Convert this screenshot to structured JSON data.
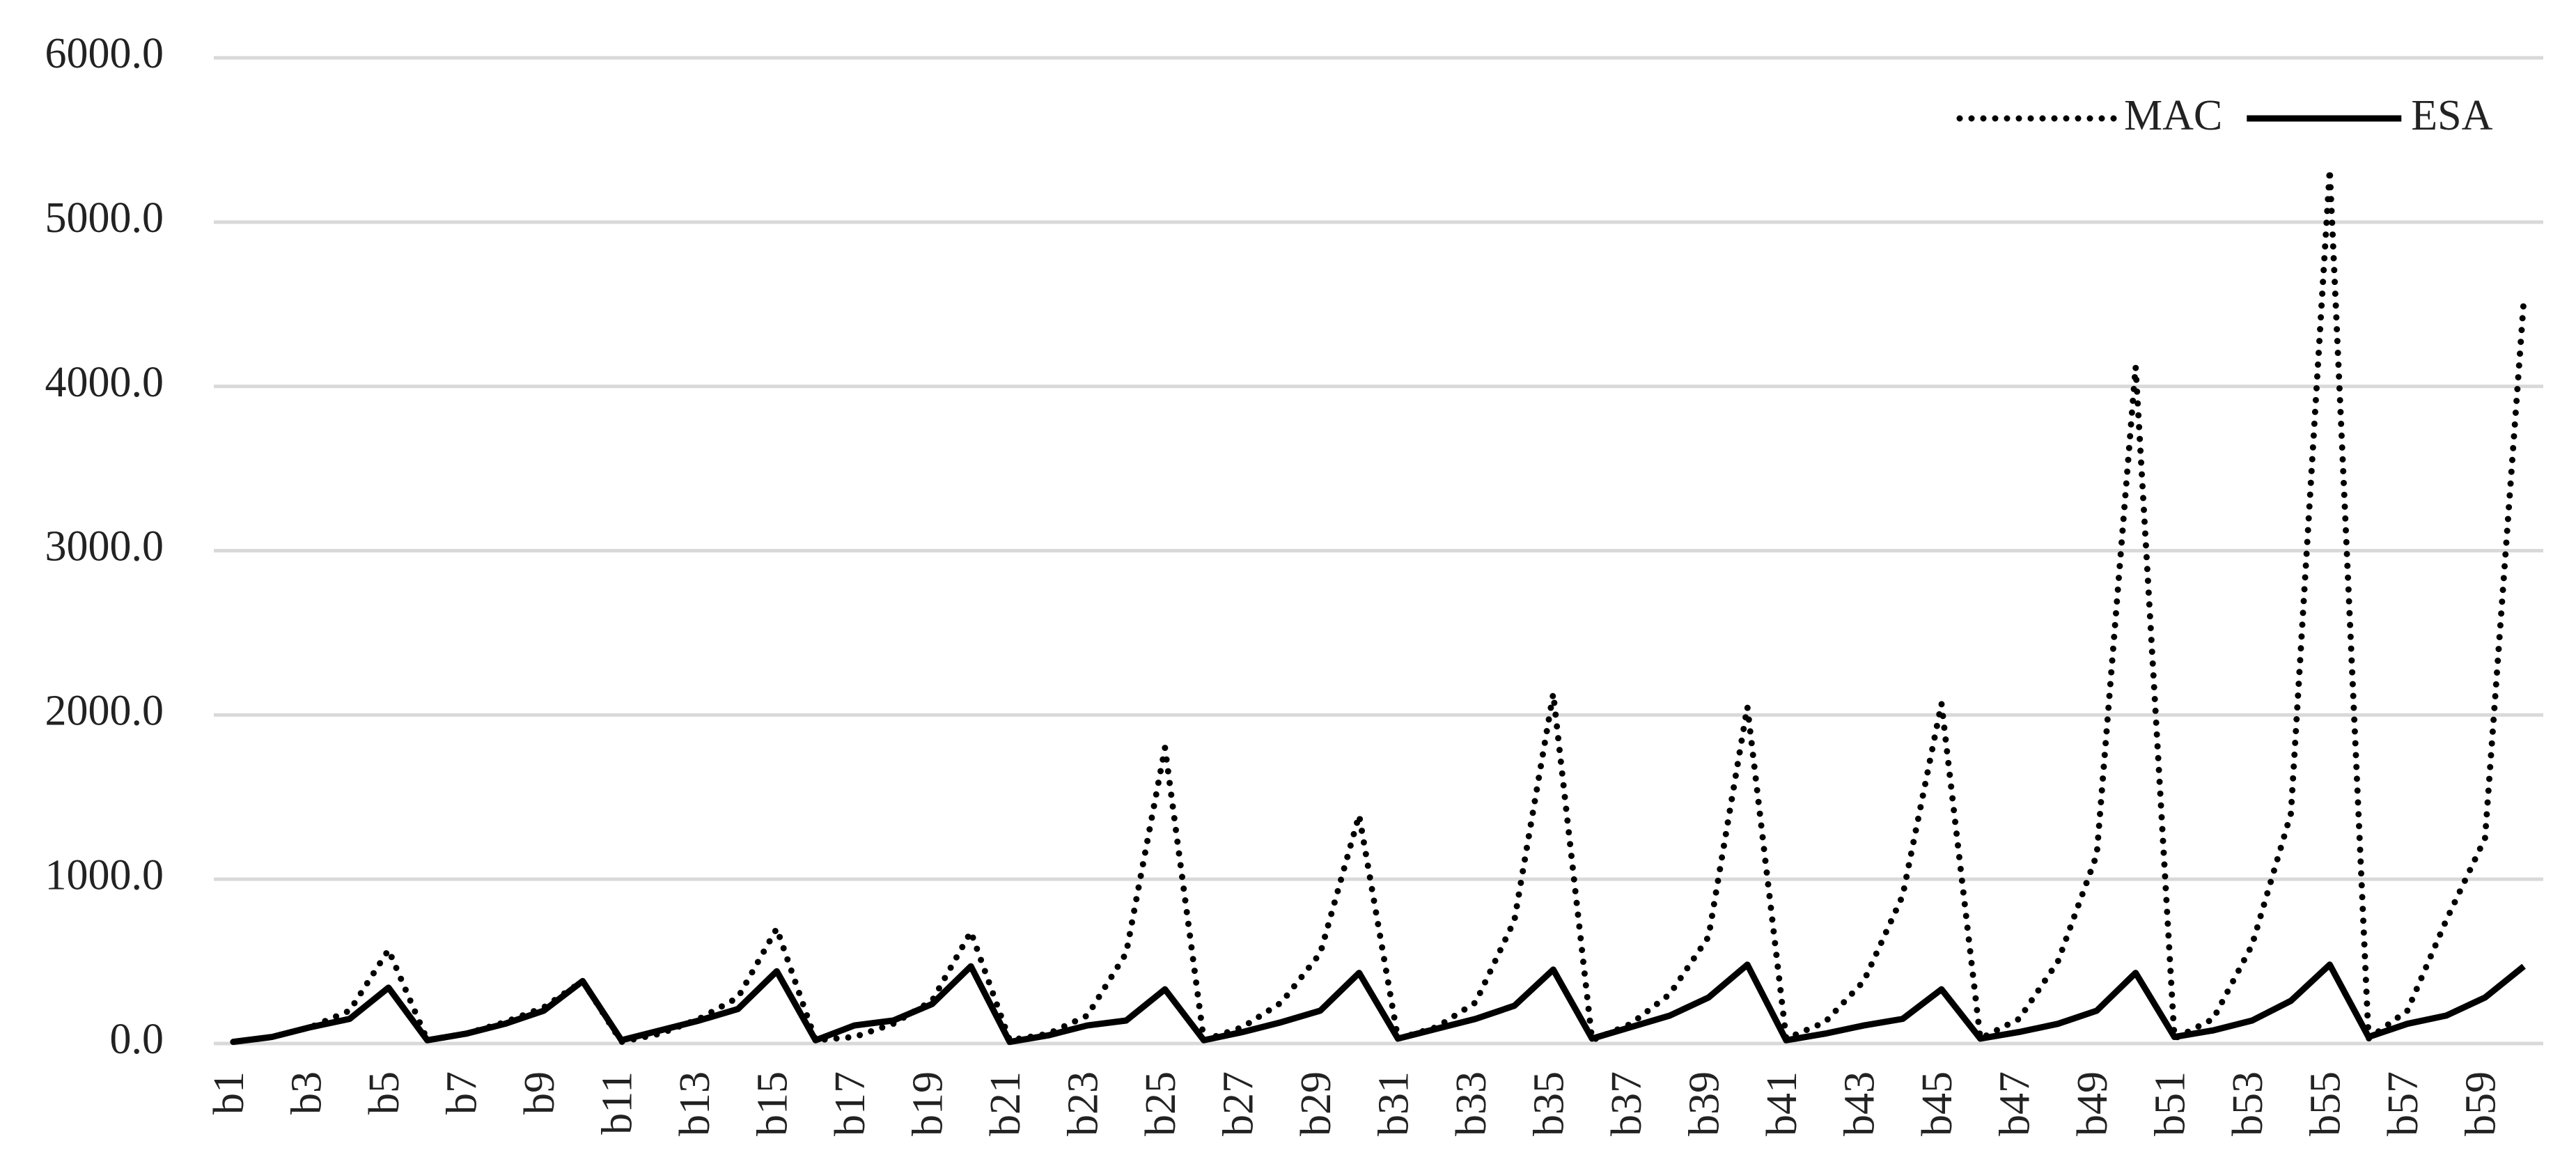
{
  "chart_data": {
    "type": "line",
    "categories": [
      "b1",
      null,
      "b3",
      null,
      "b5",
      null,
      "b7",
      null,
      "b9",
      null,
      "b11",
      null,
      "b13",
      null,
      "b15",
      null,
      "b17",
      null,
      "b19",
      null,
      "b21",
      null,
      "b23",
      null,
      "b25",
      null,
      "b27",
      null,
      "b29",
      null,
      "b31",
      null,
      "b33",
      null,
      "b35",
      null,
      "b37",
      null,
      "b39",
      null,
      "b41",
      null,
      "b43",
      null,
      "b45",
      null,
      "b47",
      null,
      "b49",
      null,
      "b51",
      null,
      "b53",
      null,
      "b55",
      null,
      "b57",
      null,
      "b59",
      null
    ],
    "series": [
      {
        "name": "MAC",
        "color": "#000000",
        "dash": "dotted",
        "values": [
          10,
          40,
          100,
          200,
          570,
          20,
          60,
          130,
          220,
          380,
          10,
          60,
          150,
          280,
          700,
          20,
          40,
          120,
          260,
          680,
          20,
          60,
          170,
          550,
          1800,
          20,
          100,
          250,
          550,
          1390,
          30,
          100,
          250,
          750,
          2130,
          20,
          120,
          300,
          650,
          2050,
          30,
          130,
          380,
          900,
          2070,
          30,
          150,
          500,
          1150,
          4120,
          30,
          150,
          600,
          1400,
          5320,
          30,
          200,
          750,
          1250,
          4530
        ]
      },
      {
        "name": "ESA",
        "color": "#000000",
        "dash": "solid",
        "values": [
          10,
          40,
          100,
          150,
          340,
          20,
          60,
          120,
          200,
          380,
          20,
          80,
          140,
          210,
          440,
          20,
          110,
          140,
          240,
          470,
          10,
          50,
          110,
          140,
          330,
          20,
          70,
          130,
          200,
          430,
          30,
          90,
          150,
          230,
          450,
          30,
          100,
          170,
          280,
          480,
          20,
          60,
          110,
          150,
          330,
          30,
          70,
          120,
          200,
          430,
          40,
          80,
          140,
          260,
          480,
          40,
          120,
          170,
          280,
          470
        ]
      }
    ],
    "ylim": [
      0,
      6000
    ],
    "yticks": [
      {
        "value": 0,
        "label": "0.0"
      },
      {
        "value": 1000,
        "label": "1000.0"
      },
      {
        "value": 2000,
        "label": "2000.0"
      },
      {
        "value": 3000,
        "label": "3000.0"
      },
      {
        "value": 4000,
        "label": "4000.0"
      },
      {
        "value": 5000,
        "label": "5000.0"
      },
      {
        "value": 6000,
        "label": "6000.0"
      }
    ],
    "grid": true,
    "legend": "top-right"
  }
}
